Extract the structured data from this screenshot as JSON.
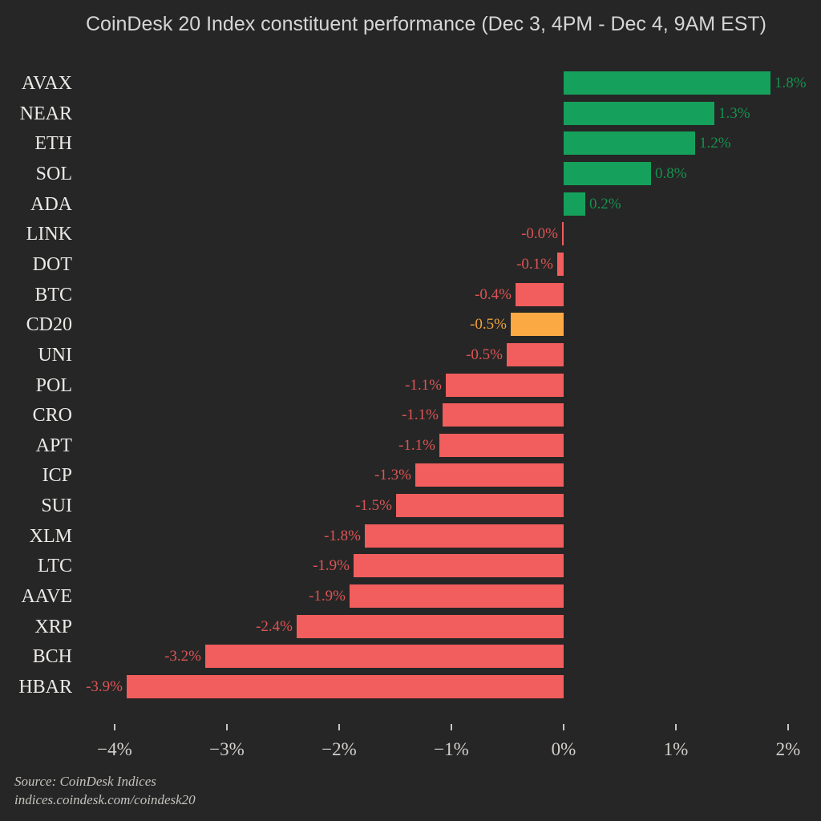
{
  "title": "CoinDesk 20 Index constituent performance (Dec 3, 4PM - Dec 4, 9AM EST)",
  "source": {
    "line1": "Source: CoinDesk Indices",
    "line2": "indices.coindesk.com/coindesk20"
  },
  "colors": {
    "background": "#262626",
    "positive_bar": "#15a15b",
    "positive_text": "#15914f",
    "negative_bar": "#f25d5d",
    "negative_text": "#dd5454",
    "highlight_bar": "#fbaa43",
    "highlight_text": "#efa23c",
    "title_text": "#d5d5d5",
    "category_text": "#eceae7",
    "axis_text": "#d2cfcb"
  },
  "chart_data": {
    "type": "bar",
    "orientation": "horizontal",
    "title": "CoinDesk 20 Index constituent performance (Dec 3, 4PM - Dec 4, 9AM EST)",
    "xlabel": "",
    "ylabel": "",
    "grid": false,
    "legend": false,
    "xlim": [
      -4.3,
      2.3
    ],
    "x_ticks": [
      {
        "label": "−4%",
        "value": -4
      },
      {
        "label": "−3%",
        "value": -3
      },
      {
        "label": "−2%",
        "value": -2
      },
      {
        "label": "−1%",
        "value": -1
      },
      {
        "label": "0%",
        "value": 0
      },
      {
        "label": "1%",
        "value": 1
      },
      {
        "label": "2%",
        "value": 2
      }
    ],
    "rows": [
      {
        "category": "AVAX",
        "value": 1.84,
        "label": "1.8%",
        "color": "positive"
      },
      {
        "category": "NEAR",
        "value": 1.34,
        "label": "1.3%",
        "color": "positive"
      },
      {
        "category": "ETH",
        "value": 1.17,
        "label": "1.2%",
        "color": "positive"
      },
      {
        "category": "SOL",
        "value": 0.78,
        "label": "0.8%",
        "color": "positive"
      },
      {
        "category": "ADA",
        "value": 0.19,
        "label": "0.2%",
        "color": "positive"
      },
      {
        "category": "LINK",
        "value": -0.01,
        "label": "-0.0%",
        "color": "negative"
      },
      {
        "category": "DOT",
        "value": -0.06,
        "label": "-0.1%",
        "color": "negative"
      },
      {
        "category": "BTC",
        "value": -0.43,
        "label": "-0.4%",
        "color": "negative"
      },
      {
        "category": "CD20",
        "value": -0.47,
        "label": "-0.5%",
        "color": "highlight"
      },
      {
        "category": "UNI",
        "value": -0.51,
        "label": "-0.5%",
        "color": "negative"
      },
      {
        "category": "POL",
        "value": -1.05,
        "label": "-1.1%",
        "color": "negative"
      },
      {
        "category": "CRO",
        "value": -1.08,
        "label": "-1.1%",
        "color": "negative"
      },
      {
        "category": "APT",
        "value": -1.11,
        "label": "-1.1%",
        "color": "negative"
      },
      {
        "category": "ICP",
        "value": -1.32,
        "label": "-1.3%",
        "color": "negative"
      },
      {
        "category": "SUI",
        "value": -1.49,
        "label": "-1.5%",
        "color": "negative"
      },
      {
        "category": "XLM",
        "value": -1.77,
        "label": "-1.8%",
        "color": "negative"
      },
      {
        "category": "LTC",
        "value": -1.87,
        "label": "-1.9%",
        "color": "negative"
      },
      {
        "category": "AAVE",
        "value": -1.91,
        "label": "-1.9%",
        "color": "negative"
      },
      {
        "category": "XRP",
        "value": -2.38,
        "label": "-2.4%",
        "color": "negative"
      },
      {
        "category": "BCH",
        "value": -3.19,
        "label": "-3.2%",
        "color": "negative"
      },
      {
        "category": "HBAR",
        "value": -3.89,
        "label": "-3.9%",
        "color": "negative"
      }
    ]
  }
}
